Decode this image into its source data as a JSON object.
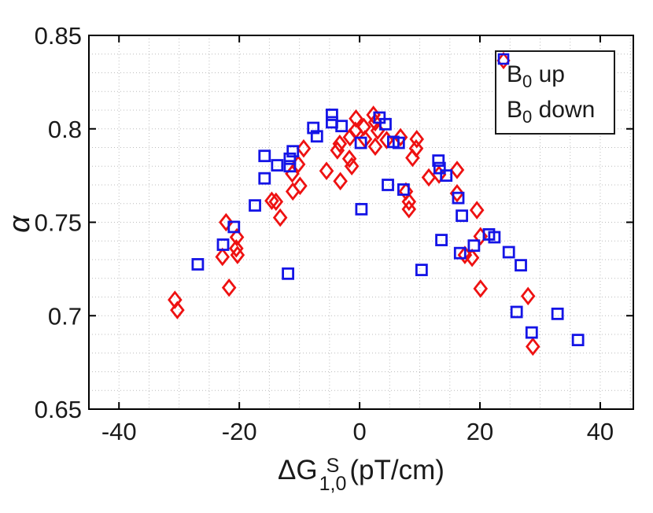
{
  "chart_data": {
    "type": "scatter",
    "title": "",
    "ylabel": "α",
    "xlabel_parts": {
      "base": "ΔG",
      "sup": "S",
      "sub": "1,0",
      "unit": "(pT/cm)"
    },
    "xlim": [
      -45,
      45.5
    ],
    "ylim": [
      0.65,
      0.85
    ],
    "x_ticks": {
      "values": [
        -40,
        -20,
        0,
        20,
        40
      ],
      "labels": [
        "-40",
        "-20",
        "0",
        "20",
        "40"
      ]
    },
    "y_ticks": {
      "values": [
        0.65,
        0.7,
        0.75,
        0.8,
        0.85
      ],
      "labels": [
        "0.65",
        "0.7",
        "0.75",
        "0.8",
        "0.85"
      ]
    },
    "grid": {
      "on": true,
      "x_step": 5,
      "y_step": 0.01,
      "style": "dotted",
      "color": "#bcbcbc"
    },
    "axis_color": "#000000",
    "tick_label_color": "#1a1a1a",
    "legend": {
      "position": "top-right",
      "items": [
        {
          "marker": "diamond",
          "color": "#ee1111",
          "prefix": "B",
          "sub": "0",
          "rest": " up"
        },
        {
          "marker": "square",
          "color": "#1414e6",
          "prefix": "B",
          "sub": "0",
          "rest": " down"
        }
      ]
    },
    "series": [
      {
        "name": "B0 up",
        "marker": "diamond",
        "color": "#ee1111",
        "points": [
          [
            -30.7,
            0.7085
          ],
          [
            -30.3,
            0.703
          ],
          [
            -22.2,
            0.75
          ],
          [
            -22.8,
            0.7315
          ],
          [
            -21.7,
            0.715
          ],
          [
            -20.4,
            0.742
          ],
          [
            -20.5,
            0.736
          ],
          [
            -20.3,
            0.7325
          ],
          [
            -14.6,
            0.7615
          ],
          [
            -13.9,
            0.761
          ],
          [
            -13.2,
            0.7525
          ],
          [
            -11.2,
            0.776
          ],
          [
            -11.1,
            0.7665
          ],
          [
            -10.2,
            0.781
          ],
          [
            -9.9,
            0.7695
          ],
          [
            -9.3,
            0.7895
          ],
          [
            -5.5,
            0.7775
          ],
          [
            -3.7,
            0.7885
          ],
          [
            -3.3,
            0.792
          ],
          [
            -3.2,
            0.772
          ],
          [
            -1.7,
            0.784
          ],
          [
            -1.3,
            0.78
          ],
          [
            -1.6,
            0.7955
          ],
          [
            -0.7,
            0.799
          ],
          [
            -0.6,
            0.8055
          ],
          [
            0.7,
            0.801
          ],
          [
            0.9,
            0.7945
          ],
          [
            2.3,
            0.8075
          ],
          [
            2.6,
            0.8035
          ],
          [
            3.0,
            0.799
          ],
          [
            2.6,
            0.7905
          ],
          [
            4.5,
            0.794
          ],
          [
            6.8,
            0.7955
          ],
          [
            7.7,
            0.7665
          ],
          [
            8.2,
            0.761
          ],
          [
            8.2,
            0.757
          ],
          [
            8.8,
            0.7845
          ],
          [
            9.4,
            0.7895
          ],
          [
            9.5,
            0.7945
          ],
          [
            11.5,
            0.774
          ],
          [
            13.2,
            0.7755
          ],
          [
            16.2,
            0.778
          ],
          [
            16.2,
            0.7655
          ],
          [
            19.5,
            0.7565
          ],
          [
            20.1,
            0.7425
          ],
          [
            20.1,
            0.7145
          ],
          [
            17.5,
            0.7325
          ],
          [
            18.7,
            0.731
          ],
          [
            28.0,
            0.7105
          ],
          [
            28.8,
            0.6835
          ]
        ]
      },
      {
        "name": "B0 down",
        "marker": "square",
        "color": "#1414e6",
        "points": [
          [
            -26.9,
            0.7275
          ],
          [
            -22.7,
            0.738
          ],
          [
            -20.9,
            0.7475
          ],
          [
            -17.4,
            0.759
          ],
          [
            -15.8,
            0.7855
          ],
          [
            -15.8,
            0.7735
          ],
          [
            -13.7,
            0.7805
          ],
          [
            -11.9,
            0.7225
          ],
          [
            -11.6,
            0.784
          ],
          [
            -11.6,
            0.78
          ],
          [
            -11.1,
            0.788
          ],
          [
            -7.7,
            0.8005
          ],
          [
            -7.1,
            0.796
          ],
          [
            -4.6,
            0.8075
          ],
          [
            -4.6,
            0.8035
          ],
          [
            -3.0,
            0.8015
          ],
          [
            0.2,
            0.7925
          ],
          [
            0.3,
            0.757
          ],
          [
            3.3,
            0.806
          ],
          [
            4.3,
            0.8025
          ],
          [
            5.6,
            0.793
          ],
          [
            6.5,
            0.7925
          ],
          [
            4.7,
            0.77
          ],
          [
            7.3,
            0.7675
          ],
          [
            10.3,
            0.7245
          ],
          [
            13.1,
            0.783
          ],
          [
            13.3,
            0.779
          ],
          [
            14.4,
            0.775
          ],
          [
            13.6,
            0.7405
          ],
          [
            16.4,
            0.763
          ],
          [
            17.0,
            0.7535
          ],
          [
            16.7,
            0.7335
          ],
          [
            19.0,
            0.7375
          ],
          [
            21.5,
            0.7435
          ],
          [
            22.4,
            0.742
          ],
          [
            24.8,
            0.734
          ],
          [
            26.8,
            0.727
          ],
          [
            26.1,
            0.702
          ],
          [
            28.6,
            0.691
          ],
          [
            32.9,
            0.701
          ],
          [
            36.3,
            0.687
          ]
        ]
      }
    ]
  }
}
